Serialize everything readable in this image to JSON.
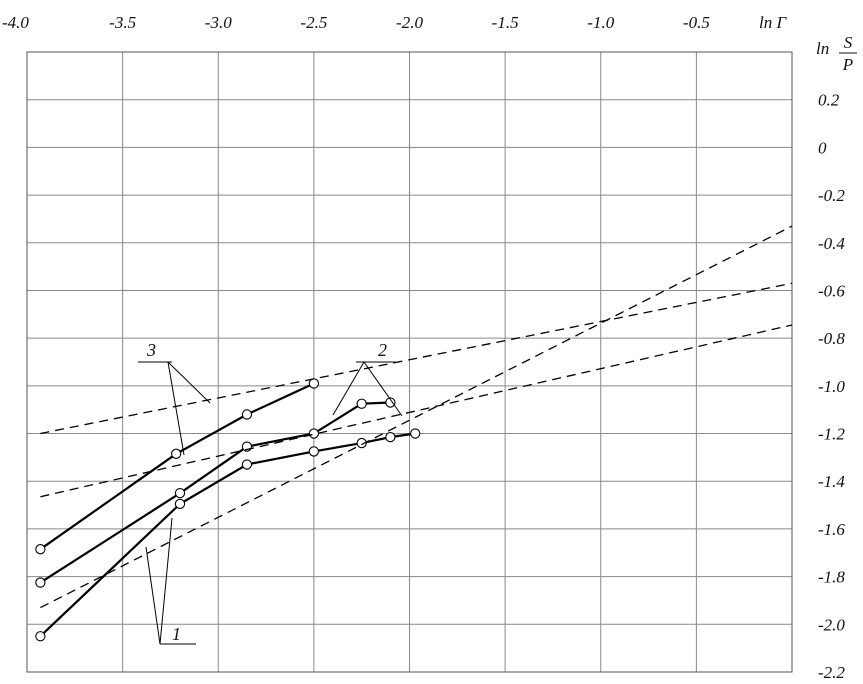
{
  "chart_data": {
    "type": "line",
    "xlabel": "ln Γ",
    "ylabel": {
      "prefix": "ln",
      "numerator": "S",
      "denominator": "P"
    },
    "xlim": [
      -4.0,
      0.0
    ],
    "ylim": [
      -2.2,
      0.4
    ],
    "x_ticks": [
      -4.0,
      -3.5,
      -3.0,
      -2.5,
      -2.0,
      -1.5,
      -1.0,
      -0.5
    ],
    "x_tick_labels": [
      "-4.0",
      "-3.5",
      "-3.0",
      "-2.5",
      "-2.0",
      "-1.5",
      "-1.0",
      "-0.5"
    ],
    "y_ticks": [
      0.2,
      0.0,
      -0.2,
      -0.4,
      -0.6,
      -0.8,
      -1.0,
      -1.2,
      -1.4,
      -1.6,
      -1.8,
      -2.0,
      -2.2
    ],
    "y_tick_labels": [
      "0.2",
      "0",
      "-0.2",
      "-0.4",
      "-0.6",
      "-0.8",
      "-1.0",
      "-1.2",
      "-1.4",
      "-1.6",
      "-1.8",
      "-2.0",
      "-2.2"
    ],
    "grid": true,
    "series": [
      {
        "label": "1",
        "style": "solid",
        "x": [
          -3.93,
          -3.2,
          -2.85,
          -2.5,
          -2.25,
          -2.1,
          -1.97
        ],
        "y": [
          -2.05,
          -1.495,
          -1.33,
          -1.275,
          -1.24,
          -1.215,
          -1.2
        ]
      },
      {
        "label": "2",
        "style": "solid",
        "x": [
          -3.93,
          -3.2,
          -2.85,
          -2.5,
          -2.25,
          -2.1
        ],
        "y": [
          -1.825,
          -1.45,
          -1.255,
          -1.2,
          -1.075,
          -1.07
        ]
      },
      {
        "label": "3",
        "style": "solid",
        "x": [
          -3.93,
          -3.22,
          -2.85,
          -2.5
        ],
        "y": [
          -1.685,
          -1.285,
          -1.12,
          -0.99
        ]
      },
      {
        "label": "1",
        "style": "dashed",
        "x": [
          -3.93,
          0.0
        ],
        "y": [
          -1.93,
          -0.33
        ]
      },
      {
        "label": "2",
        "style": "dashed",
        "x": [
          -3.93,
          0.0
        ],
        "y": [
          -1.465,
          -0.745
        ]
      },
      {
        "label": "3",
        "style": "dashed",
        "x": [
          -3.93,
          0.0
        ],
        "y": [
          -1.2,
          -0.57
        ]
      }
    ],
    "callouts": [
      "1",
      "2",
      "3"
    ]
  }
}
